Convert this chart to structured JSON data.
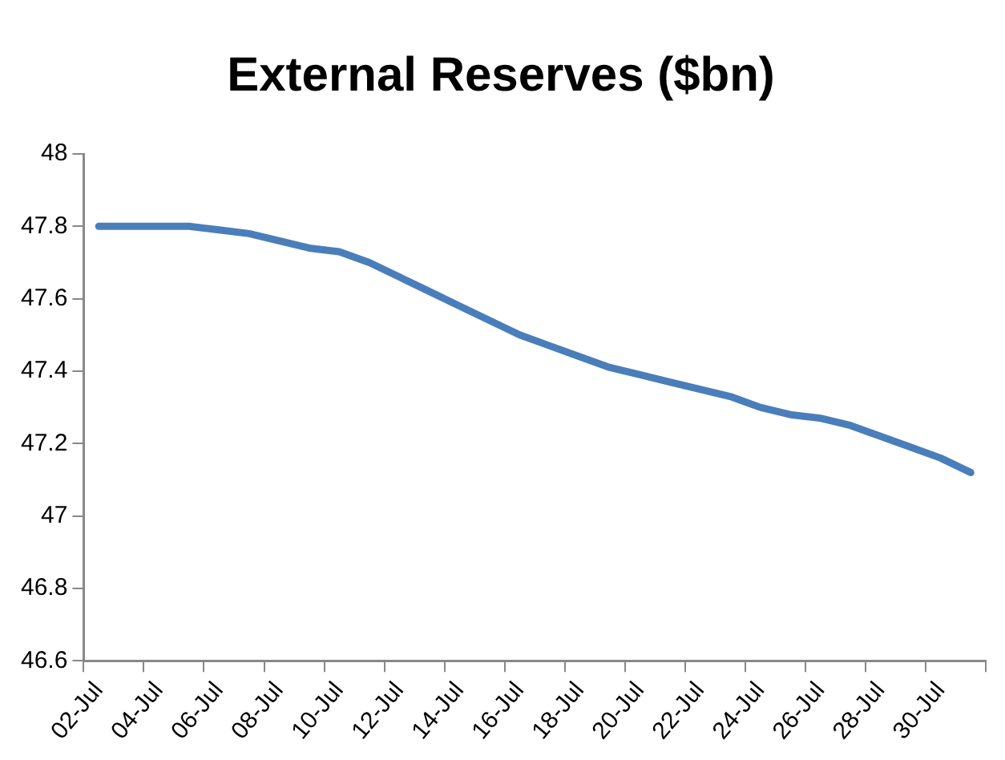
{
  "chart_data": {
    "type": "line",
    "title": "External Reserves ($bn)",
    "categories": [
      "02-Jul",
      null,
      "04-Jul",
      null,
      "06-Jul",
      null,
      "08-Jul",
      null,
      "10-Jul",
      null,
      "12-Jul",
      null,
      "14-Jul",
      null,
      "16-Jul",
      null,
      "18-Jul",
      null,
      "20-Jul",
      null,
      "22-Jul",
      null,
      "24-Jul",
      null,
      "26-Jul",
      null,
      "28-Jul",
      null,
      "30-Jul",
      null
    ],
    "series": [
      {
        "color": "#4a7ebb",
        "values": [
          47.8,
          47.8,
          47.8,
          47.8,
          47.79,
          47.78,
          47.76,
          47.74,
          47.73,
          47.7,
          47.66,
          47.62,
          47.58,
          47.54,
          47.5,
          47.47,
          47.44,
          47.41,
          47.39,
          47.37,
          47.35,
          47.33,
          47.3,
          47.28,
          47.27,
          47.25,
          47.22,
          47.19,
          47.16,
          47.12
        ]
      }
    ],
    "ylim": [
      46.6,
      48
    ],
    "yticks": [
      46.6,
      46.8,
      47,
      47.2,
      47.4,
      47.6,
      47.8,
      48
    ],
    "grid": false,
    "legend": false,
    "marker": "none",
    "line_style": "solid"
  }
}
